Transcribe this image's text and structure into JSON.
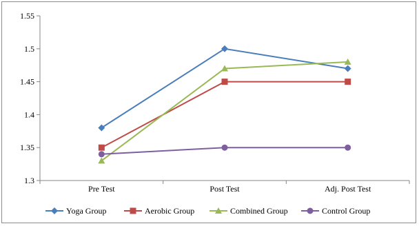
{
  "chart_data": {
    "type": "line",
    "title": "",
    "xlabel": "",
    "ylabel": "",
    "categories": [
      "Pre Test",
      "Post Test",
      "Adj. Post Test"
    ],
    "ylim": [
      1.3,
      1.55
    ],
    "yticks": [
      "1.3",
      "1.35",
      "1.4",
      "1.45",
      "1.5",
      "1.55"
    ],
    "grid": false,
    "legend": "bottom",
    "series": [
      {
        "name": "Yoga Group",
        "values": [
          1.38,
          1.5,
          1.47
        ],
        "color": "#4a7ebb",
        "marker": "diamond"
      },
      {
        "name": "Aerobic Group",
        "values": [
          1.35,
          1.45,
          1.45
        ],
        "color": "#be4b48",
        "marker": "square"
      },
      {
        "name": "Combined Group",
        "values": [
          1.33,
          1.47,
          1.48
        ],
        "color": "#98b954",
        "marker": "triangle"
      },
      {
        "name": "Control Group",
        "values": [
          1.34,
          1.35,
          1.35
        ],
        "color": "#7d5fa0",
        "marker": "circle"
      }
    ]
  }
}
